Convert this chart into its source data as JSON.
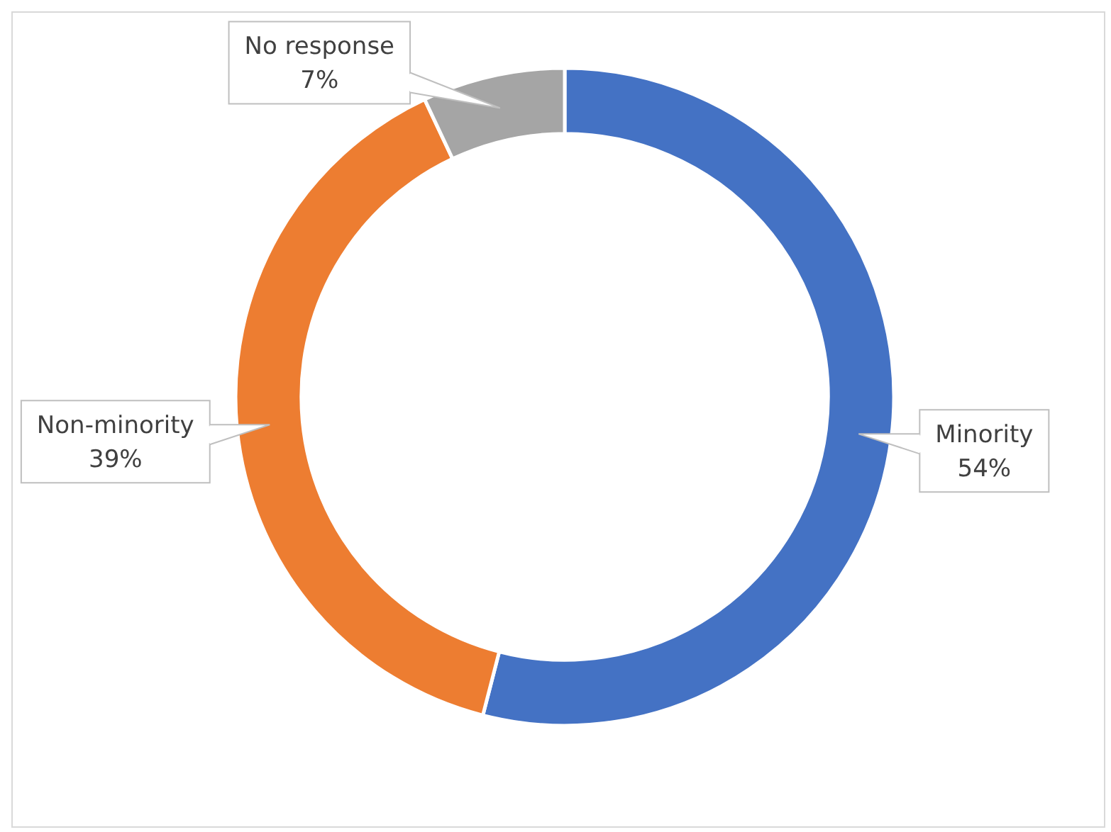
{
  "chart_data": {
    "type": "donut",
    "categories": [
      "Minority",
      "Non-minority",
      "No response"
    ],
    "values": [
      54,
      39,
      7
    ],
    "colors": [
      "#4472c4",
      "#ed7d31",
      "#a5a5a5"
    ],
    "value_labels": [
      "54%",
      "39%",
      "7%"
    ]
  }
}
